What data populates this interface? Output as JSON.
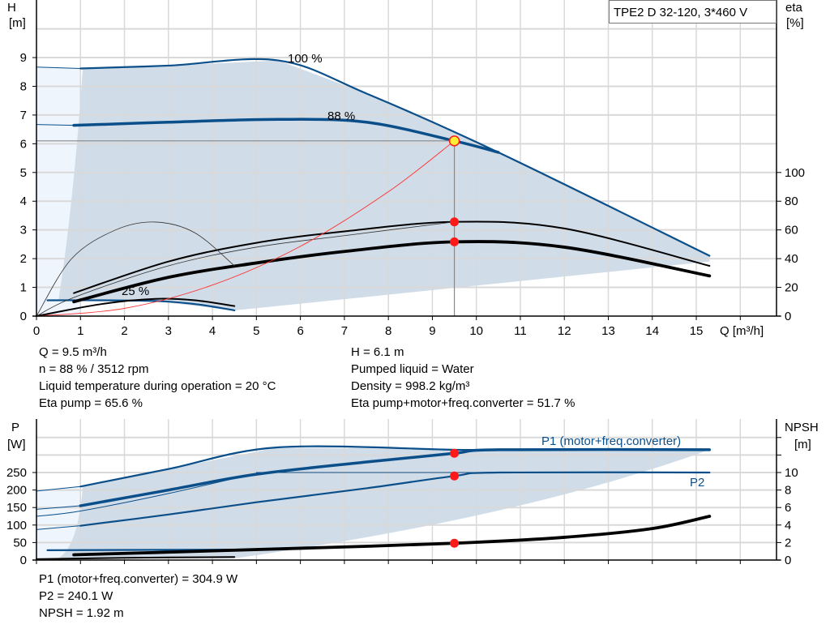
{
  "title_box": "TPE2 D 32-120, 3*460 V",
  "colors": {
    "curve_blue": "#0b4f8a",
    "area": "#d0dce8",
    "area_light": "#eef5fd",
    "grid": "#d9d9d9",
    "point_red": "#ff1a1a",
    "system_red": "#ff3030",
    "op_point_yellow": "#ffee33"
  },
  "info_upper": {
    "left": [
      "Q = 9.5 m³/h",
      "n = 88 % / 3512 rpm",
      "Liquid temperature during operation = 20 °C",
      "Eta pump = 65.6 %"
    ],
    "right": [
      "H = 6.1 m",
      "Pumped liquid = Water",
      "Density = 998.2 kg/m³",
      "Eta pump+motor+freq.converter = 51.7 %"
    ]
  },
  "info_lower": [
    "P1 (motor+freq.converter) = 304.9 W",
    "P2 = 240.1 W",
    "NPSH = 1.92 m"
  ],
  "chart_data": [
    {
      "type": "line",
      "ylabel": [
        "H",
        "[m]"
      ],
      "y2label": [
        "eta",
        "[%]"
      ],
      "xlabel": "Q [m³/h]",
      "xlim": [
        0,
        16.8
      ],
      "ylim": [
        0,
        11
      ],
      "y2lim": [
        0,
        220
      ],
      "xticks": [
        "0",
        "1",
        "2",
        "3",
        "4",
        "5",
        "6",
        "7",
        "8",
        "9",
        "10",
        "11",
        "12",
        "13",
        "14",
        "15"
      ],
      "yticks": [
        "0",
        "1",
        "2",
        "3",
        "4",
        "5",
        "6",
        "7",
        "8",
        "9"
      ],
      "y2ticks": [
        "0",
        "20",
        "40",
        "60",
        "80",
        "100"
      ],
      "grid": true,
      "curve_labels": [
        "100 %",
        "88 %",
        "25 %"
      ],
      "series": [
        {
          "id": "h100",
          "axis": "H",
          "style": "blue",
          "x": [
            1,
            3,
            5.5,
            7.5,
            10.5,
            15.3
          ],
          "y": [
            8.62,
            8.72,
            8.9,
            7.75,
            5.7,
            2.1
          ]
        },
        {
          "id": "h100ext",
          "axis": "H",
          "style": "blue-thin",
          "x": [
            0,
            1
          ],
          "y": [
            8.67,
            8.62
          ]
        },
        {
          "id": "h88",
          "axis": "H",
          "style": "blue-thick",
          "x": [
            0.85,
            3,
            5.5,
            7.5,
            9.5,
            10.5
          ],
          "y": [
            6.64,
            6.75,
            6.85,
            6.75,
            6.1,
            5.7
          ]
        },
        {
          "id": "h88ext",
          "axis": "H",
          "style": "blue-thin",
          "x": [
            0,
            0.85
          ],
          "y": [
            6.67,
            6.64
          ]
        },
        {
          "id": "h25",
          "axis": "H",
          "style": "blue",
          "x": [
            0.25,
            1.5,
            2.8,
            3.7,
            4.5
          ],
          "y": [
            0.55,
            0.55,
            0.52,
            0.4,
            0.2
          ]
        },
        {
          "id": "eta_pump",
          "axis": "eta",
          "style": "black",
          "x": [
            0.85,
            3,
            5,
            7,
            9.5,
            12,
            15.3
          ],
          "y": [
            16,
            38,
            51,
            59,
            65.6,
            61,
            35
          ]
        },
        {
          "id": "eta_total",
          "axis": "eta",
          "style": "black-thick",
          "x": [
            0.85,
            3,
            5,
            7,
            9.5,
            12,
            15.3
          ],
          "y": [
            10,
            27,
            37,
            45,
            51.7,
            48,
            28
          ]
        },
        {
          "id": "eta_pump_25",
          "axis": "eta",
          "style": "black-thin",
          "x": [
            0,
            0.8,
            1.8,
            2.7,
            3.6,
            4.5
          ],
          "y": [
            0,
            40,
            60,
            65.5,
            58,
            35
          ]
        },
        {
          "id": "eta_total_25",
          "axis": "eta",
          "style": "black",
          "x": [
            0,
            1.5,
            2.7,
            3.6,
            4.5
          ],
          "y": [
            0,
            8.5,
            12,
            11,
            7
          ]
        },
        {
          "id": "eta_low_thin",
          "axis": "eta",
          "style": "black-thin",
          "x": [
            0,
            0.85,
            3,
            5,
            7,
            9.5
          ],
          "y": [
            0,
            13,
            35,
            48,
            56,
            65.6
          ]
        },
        {
          "id": "system",
          "axis": "H",
          "style": "red",
          "x": [
            0,
            2,
            4,
            6,
            8,
            9.5
          ],
          "y": [
            0,
            0.27,
            1.08,
            2.43,
            4.33,
            6.1
          ]
        }
      ],
      "operating_point": {
        "Q": 9.5,
        "H": 6.1,
        "eta_pump": 65.6,
        "eta_total": 51.7
      }
    },
    {
      "type": "line",
      "ylabel": [
        "P",
        "[W]"
      ],
      "y2label": [
        "NPSH",
        "[m]"
      ],
      "xlim": [
        0,
        16.8
      ],
      "ylim": [
        0,
        400
      ],
      "y2lim": [
        0,
        16
      ],
      "yticks": [
        "0",
        "50",
        "100",
        "150",
        "200",
        "250"
      ],
      "y2ticks": [
        "0",
        "2",
        "4",
        "6",
        "8",
        "10"
      ],
      "grid": true,
      "curve_labels": [
        "P1 (motor+freq.converter)",
        "P2"
      ],
      "series": [
        {
          "id": "p1_max",
          "axis": "P",
          "style": "blue",
          "x": [
            1,
            3,
            5.5,
            9.5,
            10.5,
            15.3
          ],
          "y": [
            210,
            260,
            322,
            315,
            315,
            315
          ]
        },
        {
          "id": "p1_max_ext",
          "axis": "P",
          "style": "blue-thin",
          "x": [
            0,
            1
          ],
          "y": [
            197,
            210
          ]
        },
        {
          "id": "p1_88",
          "axis": "P",
          "style": "blue-thick",
          "x": [
            1,
            3,
            5,
            7.5,
            9.5,
            10.5,
            15.3
          ],
          "y": [
            155,
            200,
            245,
            280,
            305,
            315,
            315
          ]
        },
        {
          "id": "p1_88_ext",
          "axis": "P",
          "style": "blue-thin",
          "x": [
            0,
            1
          ],
          "y": [
            145,
            155
          ]
        },
        {
          "id": "p2_ext_thin",
          "axis": "P",
          "style": "blue-thin",
          "x": [
            0,
            1,
            3,
            5
          ],
          "y": [
            125,
            140,
            190,
            248
          ]
        },
        {
          "id": "p2_100",
          "axis": "P",
          "style": "blue-thin",
          "x": [
            5,
            15.3
          ],
          "y": [
            250,
            250
          ]
        },
        {
          "id": "p2_88",
          "axis": "P",
          "style": "blue",
          "x": [
            1,
            3,
            5,
            7.5,
            9.5,
            10.5,
            15.3
          ],
          "y": [
            98,
            130,
            165,
            205,
            240,
            250,
            250
          ]
        },
        {
          "id": "p2_ext",
          "axis": "P",
          "style": "blue-thin",
          "x": [
            0,
            1
          ],
          "y": [
            87,
            98
          ]
        },
        {
          "id": "p1_25",
          "axis": "P",
          "style": "blue",
          "x": [
            0.25,
            4.5
          ],
          "y": [
            28,
            30
          ]
        },
        {
          "id": "npsh",
          "axis": "NPSH",
          "style": "black-thick",
          "x": [
            0.85,
            3,
            6,
            9.5,
            12,
            14,
            15.3
          ],
          "y": [
            0.6,
            0.9,
            1.35,
            1.92,
            2.6,
            3.6,
            5.0
          ]
        },
        {
          "id": "npsh_25",
          "axis": "NPSH",
          "style": "black",
          "x": [
            0,
            2,
            4.5
          ],
          "y": [
            0.1,
            0.25,
            0.35
          ]
        }
      ],
      "operating_point": {
        "Q": 9.5,
        "P1": 304.9,
        "P2": 240.1,
        "NPSH": 1.92
      }
    }
  ]
}
